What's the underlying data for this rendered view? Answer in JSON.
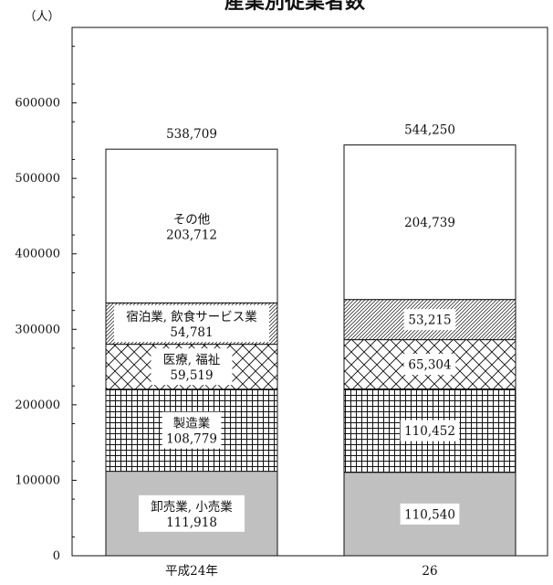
{
  "chart_data": {
    "type": "bar",
    "stacked": true,
    "title": "産業別従業者数",
    "ylabel": "（人）",
    "ylim": [
      0,
      700000
    ],
    "yticks": [
      0,
      100000,
      200000,
      300000,
      400000,
      500000,
      600000
    ],
    "ytick_labels": [
      "0",
      "100000",
      "200000",
      "300000",
      "400000",
      "500000",
      "600000"
    ],
    "grid": false,
    "legend": "none",
    "categories": [
      "平成24年",
      "26"
    ],
    "totals": [
      538709,
      544250
    ],
    "total_labels": [
      "538,709",
      "544,250"
    ],
    "series": [
      {
        "name": "卸売業, 小売業",
        "values": [
          111918,
          110540
        ],
        "value_labels": [
          "111,918",
          "110,540"
        ],
        "pattern": "solid-gray",
        "color": "#c0c0c0"
      },
      {
        "name": "製造業",
        "values": [
          108779,
          110452
        ],
        "value_labels": [
          "108,779",
          "110,452"
        ],
        "pattern": "grid",
        "color": "#ffffff"
      },
      {
        "name": "医療, 福祉",
        "values": [
          59519,
          65304
        ],
        "value_labels": [
          "59,519",
          "65,304"
        ],
        "pattern": "crosshatch",
        "color": "#ffffff"
      },
      {
        "name": "宿泊業, 飲食サービス業",
        "values": [
          54781,
          53215
        ],
        "value_labels": [
          "54,781",
          "53,215"
        ],
        "pattern": "diagonal",
        "color": "#ffffff"
      },
      {
        "name": "その他",
        "values": [
          203712,
          204739
        ],
        "value_labels": [
          "203,712",
          "204,739"
        ],
        "pattern": "none",
        "color": "#ffffff"
      }
    ],
    "segment_name_shown": [
      true,
      false
    ]
  }
}
